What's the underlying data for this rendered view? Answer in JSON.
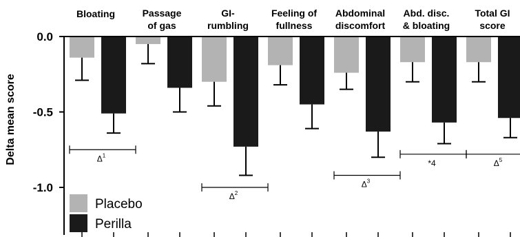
{
  "chart_data": {
    "type": "bar",
    "categories": [
      [
        "Bloating"
      ],
      [
        "Passage",
        "of gas"
      ],
      [
        "GI-",
        "rumbling"
      ],
      [
        "Feeling of",
        "fullness"
      ],
      [
        "Abdominal",
        "discomfort"
      ],
      [
        "Abd. disc.",
        "& bloating"
      ],
      [
        "Total GI",
        "score"
      ]
    ],
    "series": [
      {
        "name": "Placebo",
        "color": "#b3b3b3",
        "values": [
          -0.14,
          -0.05,
          -0.3,
          -0.19,
          -0.24,
          -0.17,
          -0.17
        ],
        "errors": [
          0.15,
          0.13,
          0.16,
          0.13,
          0.11,
          0.13,
          0.13
        ]
      },
      {
        "name": "Perilla",
        "color": "#1a1a1a",
        "values": [
          -0.51,
          -0.34,
          -0.73,
          -0.45,
          -0.63,
          -0.57,
          -0.54
        ],
        "errors": [
          0.13,
          0.16,
          0.19,
          0.16,
          0.17,
          0.14,
          0.13
        ]
      }
    ],
    "ylabel": "Delta mean score",
    "ylim": [
      -1.27,
      0.0
    ],
    "yticks": [
      {
        "value": 0.0,
        "label": "0.0"
      },
      {
        "value": -0.5,
        "label": "-0.5"
      },
      {
        "value": -1.0,
        "label": "-1.0"
      }
    ],
    "annotations": [
      {
        "category": 0,
        "value": -0.75,
        "label": "Δ",
        "sup": "1"
      },
      {
        "category": 2,
        "value": -1.0,
        "label": "Δ",
        "sup": "2"
      },
      {
        "category": 4,
        "value": -0.92,
        "label": "Δ",
        "sup": "3"
      },
      {
        "category": 5,
        "value": -0.78,
        "label": "*4",
        "sup": ""
      },
      {
        "category": 6,
        "value": -0.78,
        "label": "Δ",
        "sup": "5"
      }
    ],
    "legend": "bottom-left",
    "grid": false
  }
}
